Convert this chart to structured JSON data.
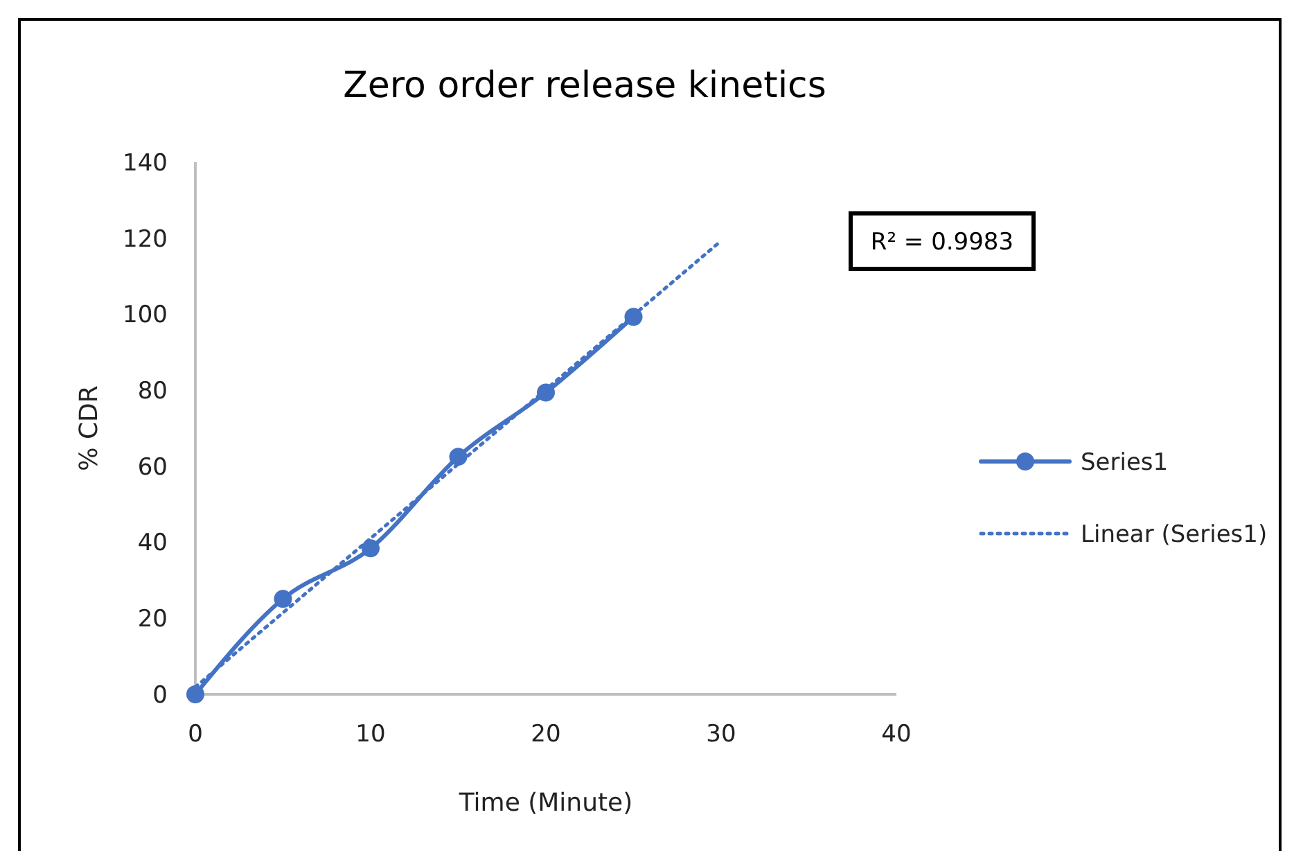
{
  "chart_data": {
    "type": "line",
    "title": "Zero order release kinetics",
    "xlabel": "Time (Minute)",
    "ylabel": "% CDR",
    "x": [
      0,
      5,
      10,
      15,
      20,
      25
    ],
    "series": [
      {
        "name": "Series1",
        "color": "#4472c4",
        "values": [
          0,
          25.1,
          38.4,
          62.5,
          79.4,
          99.3
        ],
        "marker": "circle",
        "line_style": "solid"
      },
      {
        "name": "Linear (Series1)",
        "color": "#4472c4",
        "x": [
          0,
          30
        ],
        "values": [
          1.9,
          119.3
        ],
        "marker": "none",
        "line_style": "dotted"
      }
    ],
    "xlim": [
      0,
      40
    ],
    "xticks": [
      0,
      10,
      20,
      30,
      40
    ],
    "ylim": [
      0,
      140
    ],
    "yticks": [
      0,
      20,
      40,
      60,
      80,
      100,
      120,
      140
    ],
    "annotations": [
      "R² = 0.9983"
    ],
    "legend": "right",
    "grid": false
  }
}
